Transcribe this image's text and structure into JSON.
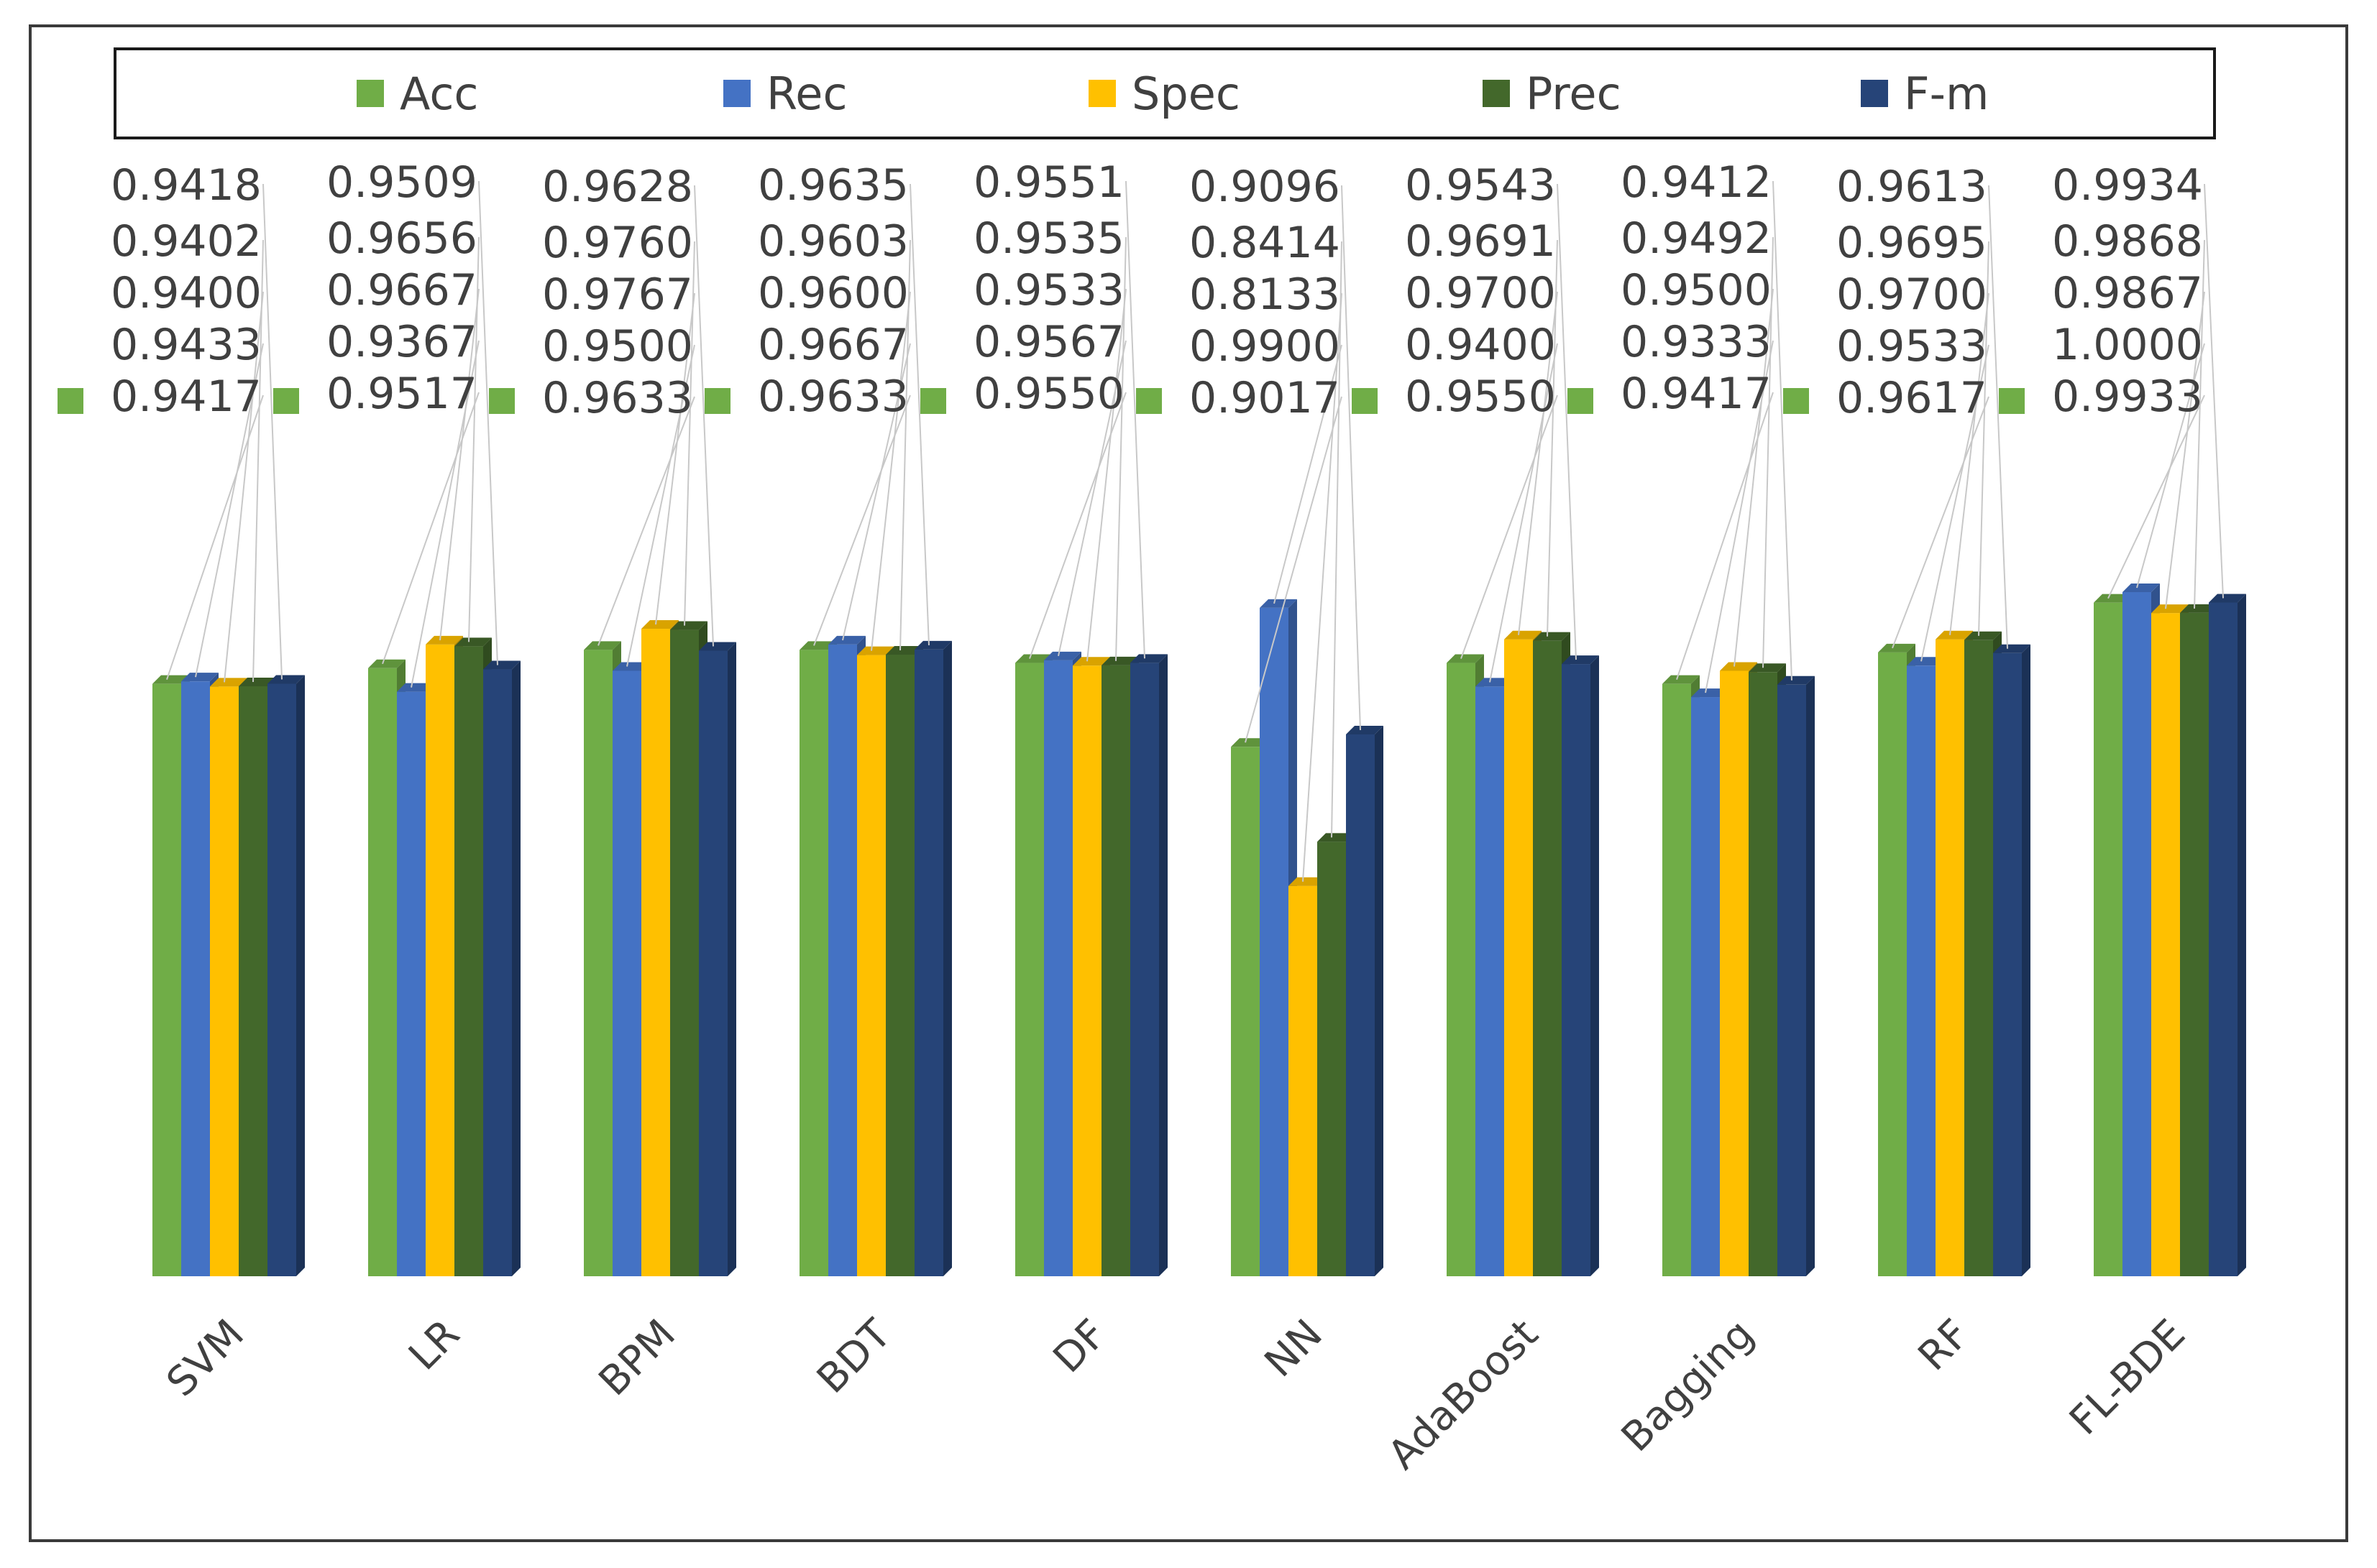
{
  "chart_data": {
    "type": "bar",
    "title": "",
    "xlabel": "",
    "ylabel": "",
    "ylim": [
      0,
      1
    ],
    "grid": false,
    "legend_position": "top",
    "categories": [
      "SVM",
      "LR",
      "BPM",
      "BDT",
      "DF",
      "NN",
      "AdaBoost",
      "Bagging",
      "RF",
      "FL-BDE"
    ],
    "series": [
      {
        "name": "Acc",
        "color": "#70ad47",
        "values": [
          0.9417,
          0.9517,
          0.9633,
          0.9633,
          0.955,
          0.9017,
          0.955,
          0.9417,
          0.9617,
          0.9933
        ]
      },
      {
        "name": "Rec",
        "color": "#4472c4",
        "values": [
          0.9433,
          0.9367,
          0.95,
          0.9667,
          0.9567,
          0.99,
          0.94,
          0.9333,
          0.9533,
          1.0
        ]
      },
      {
        "name": "Spec",
        "color": "#ffc000",
        "values": [
          0.94,
          0.9667,
          0.9767,
          0.96,
          0.9533,
          0.8133,
          0.97,
          0.95,
          0.97,
          0.9867
        ]
      },
      {
        "name": "Prec",
        "color": "#43682b",
        "values": [
          0.9402,
          0.9656,
          0.976,
          0.9603,
          0.9535,
          0.8414,
          0.9691,
          0.9492,
          0.9695,
          0.9868
        ]
      },
      {
        "name": "F-m",
        "color": "#264478",
        "values": [
          0.9418,
          0.9509,
          0.9628,
          0.9635,
          0.9551,
          0.9096,
          0.9543,
          0.9412,
          0.9613,
          0.9934
        ]
      }
    ],
    "data_labels": {
      "SVM": [
        "0.9418",
        "0.9402",
        "0.9400",
        "0.9433",
        "0.9417"
      ],
      "LR": [
        "0.9509",
        "0.9656",
        "0.9667",
        "0.9367",
        "0.9517"
      ],
      "BPM": [
        "0.9628",
        "0.9760",
        "0.9767",
        "0.9500",
        "0.9633"
      ],
      "BDT": [
        "0.9635",
        "0.9603",
        "0.9600",
        "0.9667",
        "0.9633"
      ],
      "DF": [
        "0.9551",
        "0.9535",
        "0.9533",
        "0.9567",
        "0.9550"
      ],
      "NN": [
        "0.9096",
        "0.8414",
        "0.8133",
        "0.9900",
        "0.9017"
      ],
      "AdaBoost": [
        "0.9543",
        "0.9691",
        "0.9700",
        "0.9400",
        "0.9550"
      ],
      "Bagging": [
        "0.9412",
        "0.9492",
        "0.9500",
        "0.9333",
        "0.9417"
      ],
      "RF": [
        "0.9613",
        "0.9695",
        "0.9700",
        "0.9533",
        "0.9617"
      ],
      "FL-BDE": [
        "0.9934",
        "0.9868",
        "0.9867",
        "1.0000",
        "0.9933"
      ]
    }
  }
}
